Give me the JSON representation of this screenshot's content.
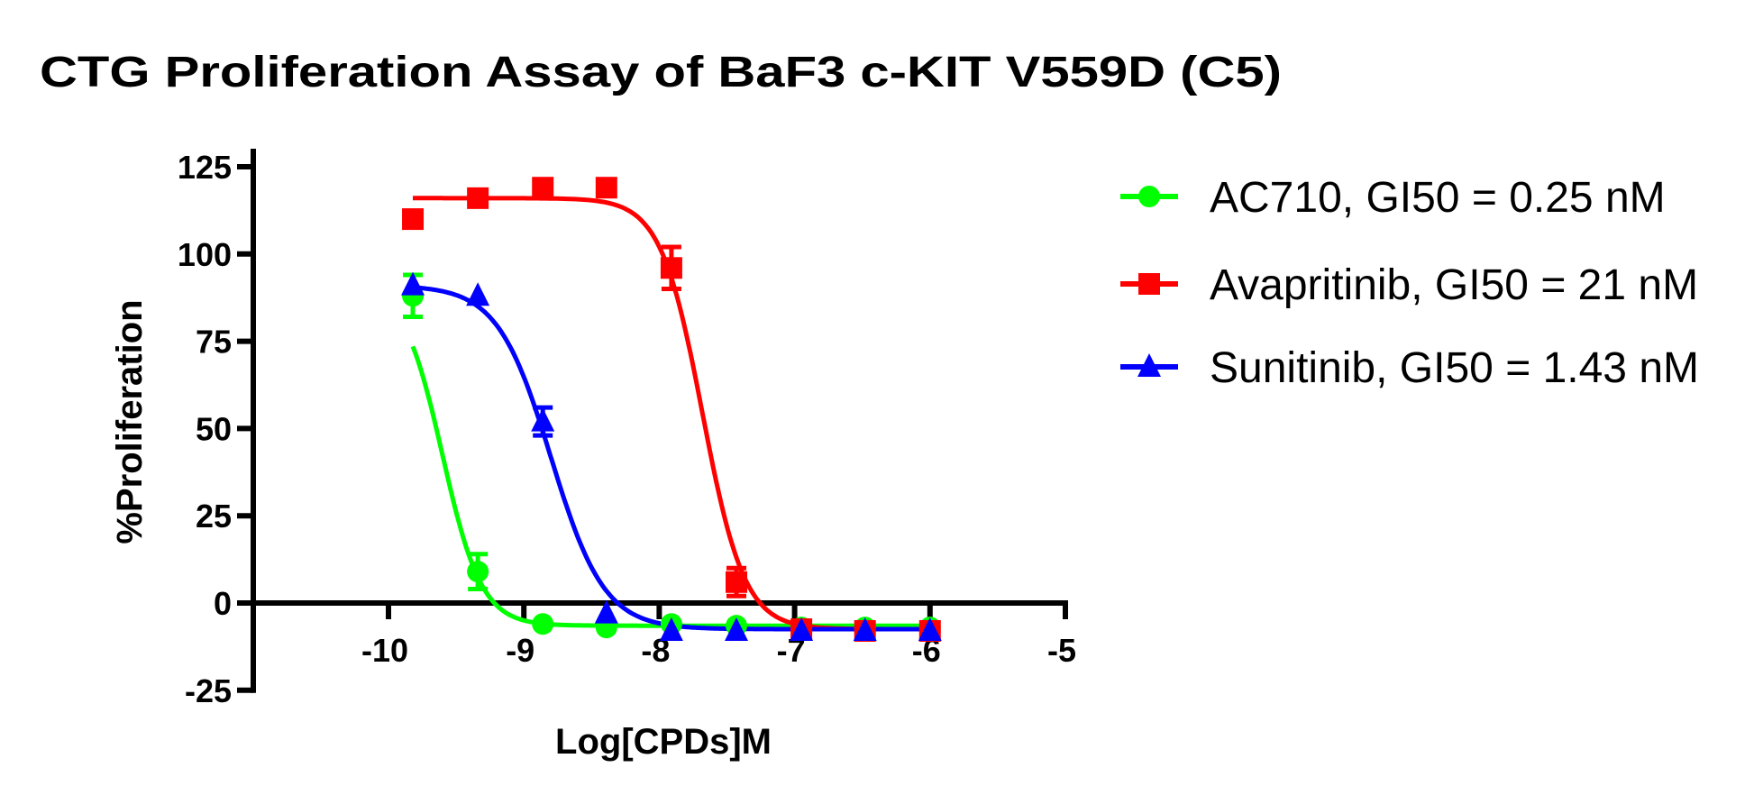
{
  "chart_data": {
    "type": "line",
    "title": "CTG Proliferation Assay of BaF3 c-KIT V559D (C5)",
    "xlabel": "Log[CPDs]M",
    "ylabel": "%Proliferation",
    "xlim": [
      -11,
      -5
    ],
    "ylim": [
      -25,
      125
    ],
    "xticks": [
      "-10",
      "-9",
      "-8",
      "-7",
      "-6",
      "-5"
    ],
    "yticks": [
      "125",
      "100",
      "75",
      "50",
      "25",
      "0",
      "-25"
    ],
    "grid": false,
    "legend_position": "right",
    "x": [
      -9.82,
      -9.34,
      -8.86,
      -8.39,
      -7.91,
      -7.43,
      -6.95,
      -6.48,
      -6.0
    ],
    "series": [
      {
        "name": "AC710, GI50 = 0.25 nM",
        "color": "#00ff00",
        "marker": "circle",
        "values": [
          88,
          9,
          -6,
          -7,
          -6,
          -6.5,
          -7,
          -7,
          -7
        ],
        "errors": [
          6,
          5,
          1,
          1,
          1,
          1,
          1,
          1,
          1
        ],
        "fit": {
          "top": 91,
          "bottom": -6.5,
          "log_gi50": -9.6,
          "hill": 3.0
        }
      },
      {
        "name": "Avapritinib, GI50 = 21 nM",
        "color": "#ff0000",
        "marker": "square",
        "values": [
          110,
          116,
          119,
          119,
          96,
          6,
          -7.5,
          -8,
          -8
        ],
        "errors": [
          1,
          1,
          2,
          2,
          6,
          4,
          1,
          1,
          1
        ],
        "fit": {
          "top": 116,
          "bottom": -7.5,
          "log_gi50": -7.68,
          "hill": 2.8
        }
      },
      {
        "name": "Sunitinib, GI50 = 1.43 nM",
        "color": "#0000ff",
        "marker": "triangle",
        "values": [
          91,
          88,
          52,
          -3,
          -8,
          -8,
          -8,
          -8,
          -8
        ],
        "errors": [
          1,
          1,
          4,
          1,
          1,
          1,
          1,
          1,
          1
        ],
        "fit": {
          "top": 91,
          "bottom": -7.5,
          "log_gi50": -8.8,
          "hill": 2.2
        }
      }
    ]
  }
}
